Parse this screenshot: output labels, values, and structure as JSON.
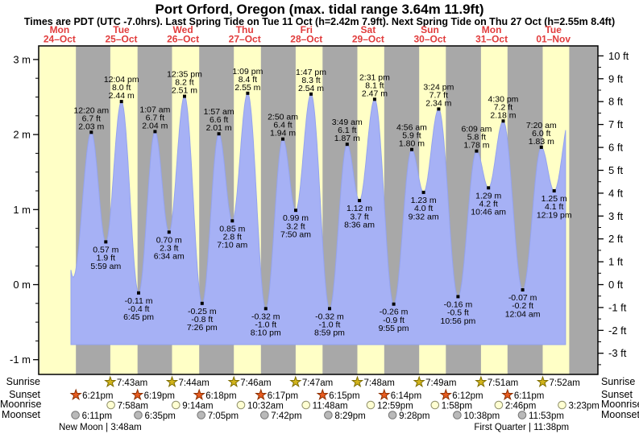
{
  "title": "Port Orford, Oregon (max. tidal range 3.64m 11.9ft)",
  "subtitle": "Times are PDT (UTC -7.0hrs). Last Spring Tide on Tue 11 Oct (h=2.42m 7.9ft). Next Spring Tide on Thu 27 Oct (h=2.55m 8.4ft)",
  "days": [
    {
      "weekday": "Mon",
      "date": "24–Oct"
    },
    {
      "weekday": "Tue",
      "date": "25–Oct"
    },
    {
      "weekday": "Wed",
      "date": "26–Oct"
    },
    {
      "weekday": "Thu",
      "date": "27–Oct"
    },
    {
      "weekday": "Fri",
      "date": "28–Oct"
    },
    {
      "weekday": "Sat",
      "date": "29–Oct"
    },
    {
      "weekday": "Sun",
      "date": "30–Oct"
    },
    {
      "weekday": "Mon",
      "date": "31–Oct"
    },
    {
      "weekday": "Tue",
      "date": "01–Nov"
    }
  ],
  "axis": {
    "left_ticks": [
      {
        "label": "3 m",
        "value": 3
      },
      {
        "label": "2 m",
        "value": 2
      },
      {
        "label": "1 m",
        "value": 1
      },
      {
        "label": "0 m",
        "value": 0
      },
      {
        "label": "-1 m",
        "value": -1
      }
    ],
    "right_ticks": [
      {
        "label": "10 ft",
        "value": 10
      },
      {
        "label": "9 ft",
        "value": 9
      },
      {
        "label": "8 ft",
        "value": 8
      },
      {
        "label": "7 ft",
        "value": 7
      },
      {
        "label": "6 ft",
        "value": 6
      },
      {
        "label": "5 ft",
        "value": 5
      },
      {
        "label": "4 ft",
        "value": 4
      },
      {
        "label": "3 ft",
        "value": 3
      },
      {
        "label": "2 ft",
        "value": 2
      },
      {
        "label": "1 ft",
        "value": 1
      },
      {
        "label": "0 ft",
        "value": 0
      },
      {
        "label": "-1 ft",
        "value": -1
      },
      {
        "label": "-2 ft",
        "value": -2
      },
      {
        "label": "-3 ft",
        "value": -3
      }
    ]
  },
  "chart_data": {
    "type": "area",
    "title": "Tide height curve, Port Orford, Oregon",
    "y_axis_left": {
      "unit": "m",
      "min": -1,
      "max": 3
    },
    "y_axis_right": {
      "unit": "ft",
      "min": -3,
      "max": 10
    },
    "x_axis": "Days Mon 24-Oct through Tue 01-Nov (yellow = day, gray = night)",
    "extremes": [
      {
        "day_index": 1,
        "day": "Tue 25–Oct",
        "time": "12:20 am",
        "type": "high",
        "height_m": "2.03",
        "height_ft": "6.7"
      },
      {
        "day_index": 1,
        "day": "Tue 25–Oct",
        "time": "5:59 am",
        "type": "low",
        "height_m": "0.57",
        "height_ft": "1.9"
      },
      {
        "day_index": 1,
        "day": "Tue 25–Oct",
        "time": "12:04 pm",
        "type": "high",
        "height_m": "2.44",
        "height_ft": "8.0"
      },
      {
        "day_index": 1,
        "day": "Tue 25–Oct",
        "time": "6:45 pm",
        "type": "low",
        "height_m": "-0.11",
        "height_ft": "-0.4"
      },
      {
        "day_index": 2,
        "day": "Wed 26–Oct",
        "time": "1:07 am",
        "type": "high",
        "height_m": "2.04",
        "height_ft": "6.7"
      },
      {
        "day_index": 2,
        "day": "Wed 26–Oct",
        "time": "6:34 am",
        "type": "low",
        "height_m": "0.70",
        "height_ft": "2.3"
      },
      {
        "day_index": 2,
        "day": "Wed 26–Oct",
        "time": "12:35 pm",
        "type": "high",
        "height_m": "2.51",
        "height_ft": "8.2"
      },
      {
        "day_index": 2,
        "day": "Wed 26–Oct",
        "time": "7:26 pm",
        "type": "low",
        "height_m": "-0.25",
        "height_ft": "-0.8"
      },
      {
        "day_index": 3,
        "day": "Thu 27–Oct",
        "time": "1:57 am",
        "type": "high",
        "height_m": "2.01",
        "height_ft": "6.6"
      },
      {
        "day_index": 3,
        "day": "Thu 27–Oct",
        "time": "7:10 am",
        "type": "low",
        "height_m": "0.85",
        "height_ft": "2.8"
      },
      {
        "day_index": 3,
        "day": "Thu 27–Oct",
        "time": "1:09 pm",
        "type": "high",
        "height_m": "2.55",
        "height_ft": "8.4"
      },
      {
        "day_index": 3,
        "day": "Thu 27–Oct",
        "time": "8:10 pm",
        "type": "low",
        "height_m": "-0.32",
        "height_ft": "-1.0"
      },
      {
        "day_index": 4,
        "day": "Fri 28–Oct",
        "time": "2:50 am",
        "type": "high",
        "height_m": "1.94",
        "height_ft": "6.4"
      },
      {
        "day_index": 4,
        "day": "Fri 28–Oct",
        "time": "7:50 am",
        "type": "low",
        "height_m": "0.99",
        "height_ft": "3.2"
      },
      {
        "day_index": 4,
        "day": "Fri 28–Oct",
        "time": "1:47 pm",
        "type": "high",
        "height_m": "2.54",
        "height_ft": "8.3"
      },
      {
        "day_index": 4,
        "day": "Fri 28–Oct",
        "time": "8:59 pm",
        "type": "low",
        "height_m": "-0.32",
        "height_ft": "-1.0"
      },
      {
        "day_index": 5,
        "day": "Sat 29–Oct",
        "time": "3:49 am",
        "type": "high",
        "height_m": "1.87",
        "height_ft": "6.1"
      },
      {
        "day_index": 5,
        "day": "Sat 29–Oct",
        "time": "8:36 am",
        "type": "low",
        "height_m": "1.12",
        "height_ft": "3.7"
      },
      {
        "day_index": 5,
        "day": "Sat 29–Oct",
        "time": "2:31 pm",
        "type": "high",
        "height_m": "2.47",
        "height_ft": "8.1"
      },
      {
        "day_index": 5,
        "day": "Sat 29–Oct",
        "time": "9:55 pm",
        "type": "low",
        "height_m": "-0.26",
        "height_ft": "-0.9"
      },
      {
        "day_index": 6,
        "day": "Sun 30–Oct",
        "time": "4:56 am",
        "type": "high",
        "height_m": "1.80",
        "height_ft": "5.9"
      },
      {
        "day_index": 6,
        "day": "Sun 30–Oct",
        "time": "9:32 am",
        "type": "low",
        "height_m": "1.23",
        "height_ft": "4.0"
      },
      {
        "day_index": 6,
        "day": "Sun 30–Oct",
        "time": "3:24 pm",
        "type": "high",
        "height_m": "2.34",
        "height_ft": "7.7"
      },
      {
        "day_index": 6,
        "day": "Sun 30–Oct",
        "time": "10:56 pm",
        "type": "low",
        "height_m": "-0.16",
        "height_ft": "-0.5"
      },
      {
        "day_index": 7,
        "day": "Mon 31–Oct",
        "time": "6:09 am",
        "type": "high",
        "height_m": "1.78",
        "height_ft": "5.8"
      },
      {
        "day_index": 7,
        "day": "Mon 31–Oct",
        "time": "10:46 am",
        "type": "low",
        "height_m": "1.29",
        "height_ft": "4.2"
      },
      {
        "day_index": 7,
        "day": "Mon 31–Oct",
        "time": "4:30 pm",
        "type": "high",
        "height_m": "2.18",
        "height_ft": "7.2"
      },
      {
        "day_index": 8,
        "day": "Tue 01–Nov",
        "time": "12:04 am",
        "type": "low",
        "height_m": "-0.07",
        "height_ft": "-0.2"
      },
      {
        "day_index": 8,
        "day": "Tue 01–Nov",
        "time": "7:20 am",
        "type": "high",
        "height_m": "1.83",
        "height_ft": "6.0"
      },
      {
        "day_index": 8,
        "day": "Tue 01–Nov",
        "time": "12:19 pm",
        "type": "low",
        "height_m": "1.25",
        "height_ft": "4.1"
      }
    ]
  },
  "astro": {
    "row_labels": [
      "Sunrise",
      "Sunset",
      "Moonrise",
      "Moonset"
    ],
    "sunrise": [
      {
        "day_index": 1,
        "time": "7:43am"
      },
      {
        "day_index": 2,
        "time": "7:44am"
      },
      {
        "day_index": 3,
        "time": "7:46am"
      },
      {
        "day_index": 4,
        "time": "7:47am"
      },
      {
        "day_index": 5,
        "time": "7:48am"
      },
      {
        "day_index": 6,
        "time": "7:49am"
      },
      {
        "day_index": 7,
        "time": "7:51am"
      },
      {
        "day_index": 8,
        "time": "7:52am"
      }
    ],
    "sunset": [
      {
        "day_index": 0,
        "time": "6:21pm"
      },
      {
        "day_index": 1,
        "time": "6:19pm"
      },
      {
        "day_index": 2,
        "time": "6:18pm"
      },
      {
        "day_index": 3,
        "time": "6:17pm"
      },
      {
        "day_index": 4,
        "time": "6:15pm"
      },
      {
        "day_index": 5,
        "time": "6:14pm"
      },
      {
        "day_index": 6,
        "time": "6:12pm"
      },
      {
        "day_index": 7,
        "time": "6:11pm"
      }
    ],
    "moonrise": [
      {
        "day_index": 1,
        "time": "7:58am"
      },
      {
        "day_index": 2,
        "time": "9:14am"
      },
      {
        "day_index": 3,
        "time": "10:32am"
      },
      {
        "day_index": 4,
        "time": "11:48am"
      },
      {
        "day_index": 5,
        "time": "12:59pm"
      },
      {
        "day_index": 6,
        "time": "1:58pm"
      },
      {
        "day_index": 7,
        "time": "2:46pm"
      },
      {
        "day_index": 8,
        "time": "3:23pm"
      }
    ],
    "moonset": [
      {
        "day_index": 0,
        "time": "6:11pm"
      },
      {
        "day_index": 1,
        "time": "6:35pm"
      },
      {
        "day_index": 2,
        "time": "7:05pm"
      },
      {
        "day_index": 3,
        "time": "7:42pm"
      },
      {
        "day_index": 4,
        "time": "8:29pm"
      },
      {
        "day_index": 5,
        "time": "9:28pm"
      },
      {
        "day_index": 6,
        "time": "10:38pm"
      },
      {
        "day_index": 7,
        "time": "11:53pm"
      }
    ],
    "moon_phases": [
      {
        "label": "New Moon | 3:48am",
        "day_index": 1,
        "time": "3:48am"
      },
      {
        "label": "First Quarter | 11:38pm",
        "day_index": 7,
        "time": "11:38pm"
      }
    ]
  },
  "colors": {
    "day_band": "#ffffc6",
    "night_band": "#a8a8a8",
    "tide_fill": "#a6b1f5",
    "tide_outline": "#94a3ee",
    "frame": "#000000",
    "date_red": "#e13c3c",
    "sunrise_star": "#d2b41c",
    "sunrise_star_border": "#7e6d00",
    "sunset_star": "#e85c20",
    "sunset_star_border": "#8c2f00",
    "moonrise_fill": "#ffffd2",
    "moonrise_border": "#8f8f6a",
    "moonset_fill": "#b9b9b9",
    "moonset_border": "#757575"
  }
}
